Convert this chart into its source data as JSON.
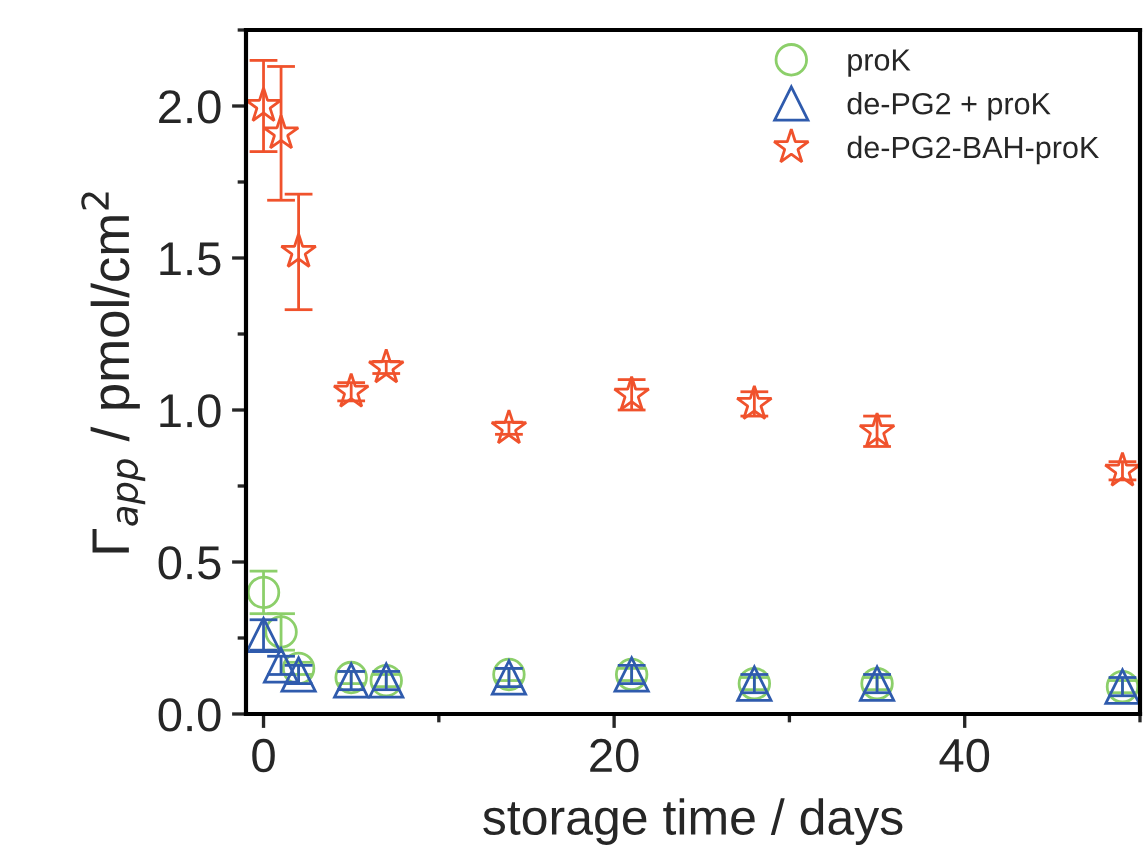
{
  "chart_data": {
    "type": "scatter",
    "xlabel": "storage time / days",
    "ylabel": "Γ$_{app}$ / pmol/cm$^{2}$",
    "x": [
      0,
      1,
      2,
      5,
      7,
      14,
      21,
      28,
      35,
      49
    ],
    "xlim": [
      -1,
      50
    ],
    "xticks": [
      0,
      20,
      40
    ],
    "ylim": [
      0,
      2.25
    ],
    "yticks": [
      {
        "value": 0,
        "label": "0.0"
      },
      {
        "value": 0.5,
        "label": "0.5"
      },
      {
        "value": 1,
        "label": "1.0"
      },
      {
        "value": 1.5,
        "label": "1.5"
      },
      {
        "value": 2,
        "label": "2.0"
      }
    ],
    "grid": false,
    "legend": "top right",
    "series": [
      {
        "name": "proK",
        "color": "#8ccf6a",
        "marker": "circle",
        "values": [
          0.4,
          0.27,
          0.15,
          0.12,
          0.11,
          0.13,
          0.13,
          0.1,
          0.1,
          0.09
        ],
        "errors": [
          0.07,
          0.06,
          0.02,
          0.02,
          0.02,
          0.02,
          0.02,
          0.02,
          0.02,
          0.02
        ]
      },
      {
        "name": "de-PG2 + proK",
        "color": "#2f5bad",
        "marker": "triangle",
        "values": [
          0.26,
          0.16,
          0.13,
          0.11,
          0.11,
          0.12,
          0.13,
          0.1,
          0.1,
          0.09
        ],
        "errors": [
          0.05,
          0.03,
          0.03,
          0.03,
          0.03,
          0.03,
          0.03,
          0.03,
          0.03,
          0.03
        ]
      },
      {
        "name": "de-PG2-BAH-proK",
        "color": "#f0522c",
        "marker": "star",
        "values": [
          2.0,
          1.91,
          1.52,
          1.06,
          1.14,
          0.94,
          1.05,
          1.02,
          0.93,
          0.8
        ],
        "errors": [
          0.15,
          0.22,
          0.19,
          0.03,
          0.02,
          0.02,
          0.05,
          0.04,
          0.05,
          0.03
        ]
      }
    ]
  }
}
